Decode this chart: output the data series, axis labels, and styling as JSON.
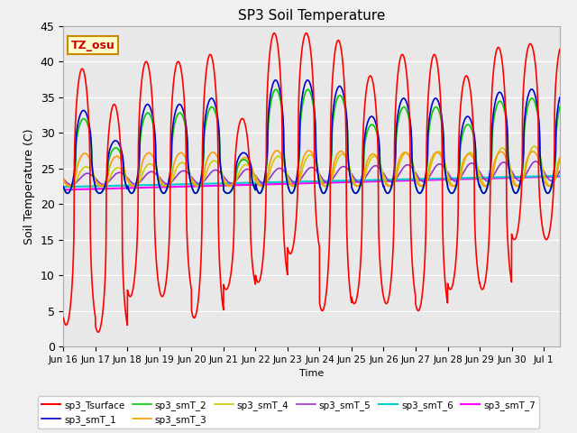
{
  "title": "SP3 Soil Temperature",
  "xlabel": "Time",
  "ylabel": "Soil Temperature (C)",
  "ylim": [
    0,
    45
  ],
  "xlim_days": [
    0,
    15.5
  ],
  "tz_label": "TZ_osu",
  "series": {
    "sp3_Tsurface": {
      "color": "#ff0000",
      "lw": 1.2
    },
    "sp3_smT_1": {
      "color": "#0000cc",
      "lw": 1.2
    },
    "sp3_smT_2": {
      "color": "#00cc00",
      "lw": 1.2
    },
    "sp3_smT_3": {
      "color": "#ff9900",
      "lw": 1.2
    },
    "sp3_smT_4": {
      "color": "#cccc00",
      "lw": 1.2
    },
    "sp3_smT_5": {
      "color": "#9933cc",
      "lw": 1.2
    },
    "sp3_smT_6": {
      "color": "#00cccc",
      "lw": 1.5
    },
    "sp3_smT_7": {
      "color": "#ff00ff",
      "lw": 1.5
    }
  },
  "tick_labels": [
    "Jun 16",
    "Jun 17",
    "Jun 18",
    "Jun 19",
    "Jun 20",
    "Jun 21",
    "Jun 22",
    "Jun 23",
    "Jun 24",
    "Jun 25",
    "Jun 26",
    "Jun 27",
    "Jun 28",
    "Jun 29",
    "Jun 30",
    "Jul 1"
  ],
  "tick_positions": [
    0,
    1,
    2,
    3,
    4,
    5,
    6,
    7,
    8,
    9,
    10,
    11,
    12,
    13,
    14,
    15
  ]
}
